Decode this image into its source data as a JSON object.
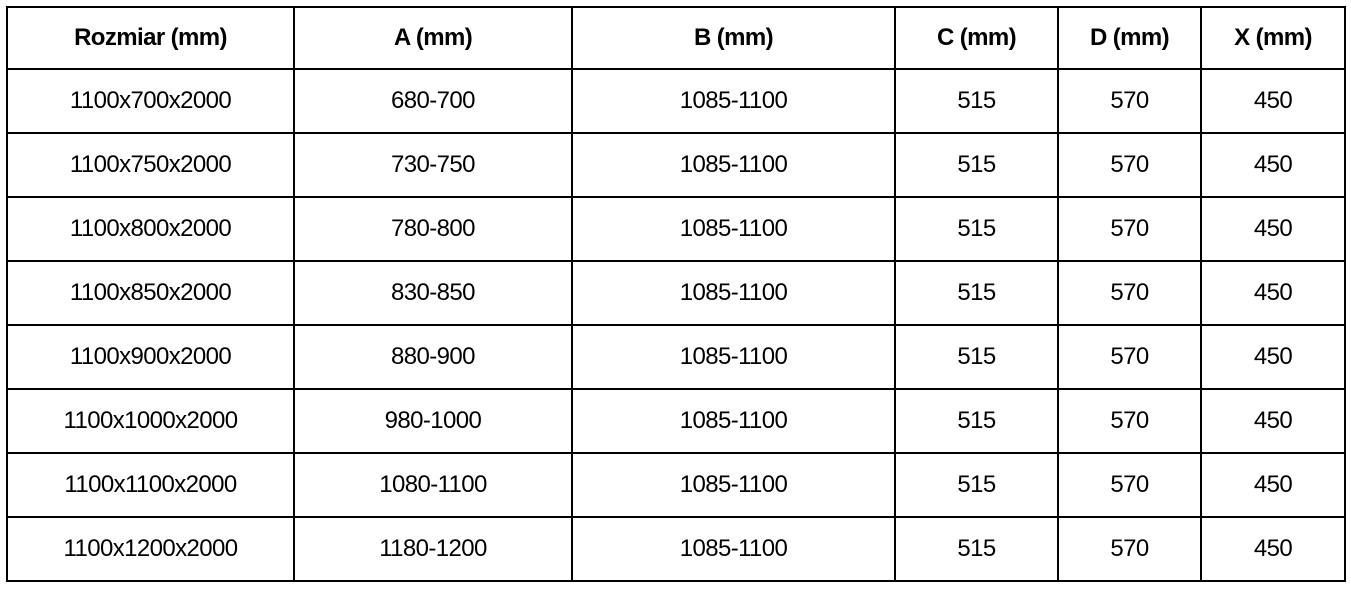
{
  "headers": [
    "Rozmiar (mm)",
    "A (mm)",
    "B (mm)",
    "C (mm)",
    "D (mm)",
    "X (mm)"
  ],
  "rows": [
    [
      "1100x700x2000",
      "680-700",
      "1085-1100",
      "515",
      "570",
      "450"
    ],
    [
      "1100x750x2000",
      "730-750",
      "1085-1100",
      "515",
      "570",
      "450"
    ],
    [
      "1100x800x2000",
      "780-800",
      "1085-1100",
      "515",
      "570",
      "450"
    ],
    [
      "1100x850x2000",
      "830-850",
      "1085-1100",
      "515",
      "570",
      "450"
    ],
    [
      "1100x900x2000",
      "880-900",
      "1085-1100",
      "515",
      "570",
      "450"
    ],
    [
      "1100x1000x2000",
      "980-1000",
      "1085-1100",
      "515",
      "570",
      "450"
    ],
    [
      "1100x1100x2000",
      "1080-1100",
      "1085-1100",
      "515",
      "570",
      "450"
    ],
    [
      "1100x1200x2000",
      "1180-1200",
      "1085-1100",
      "515",
      "570",
      "450"
    ]
  ]
}
